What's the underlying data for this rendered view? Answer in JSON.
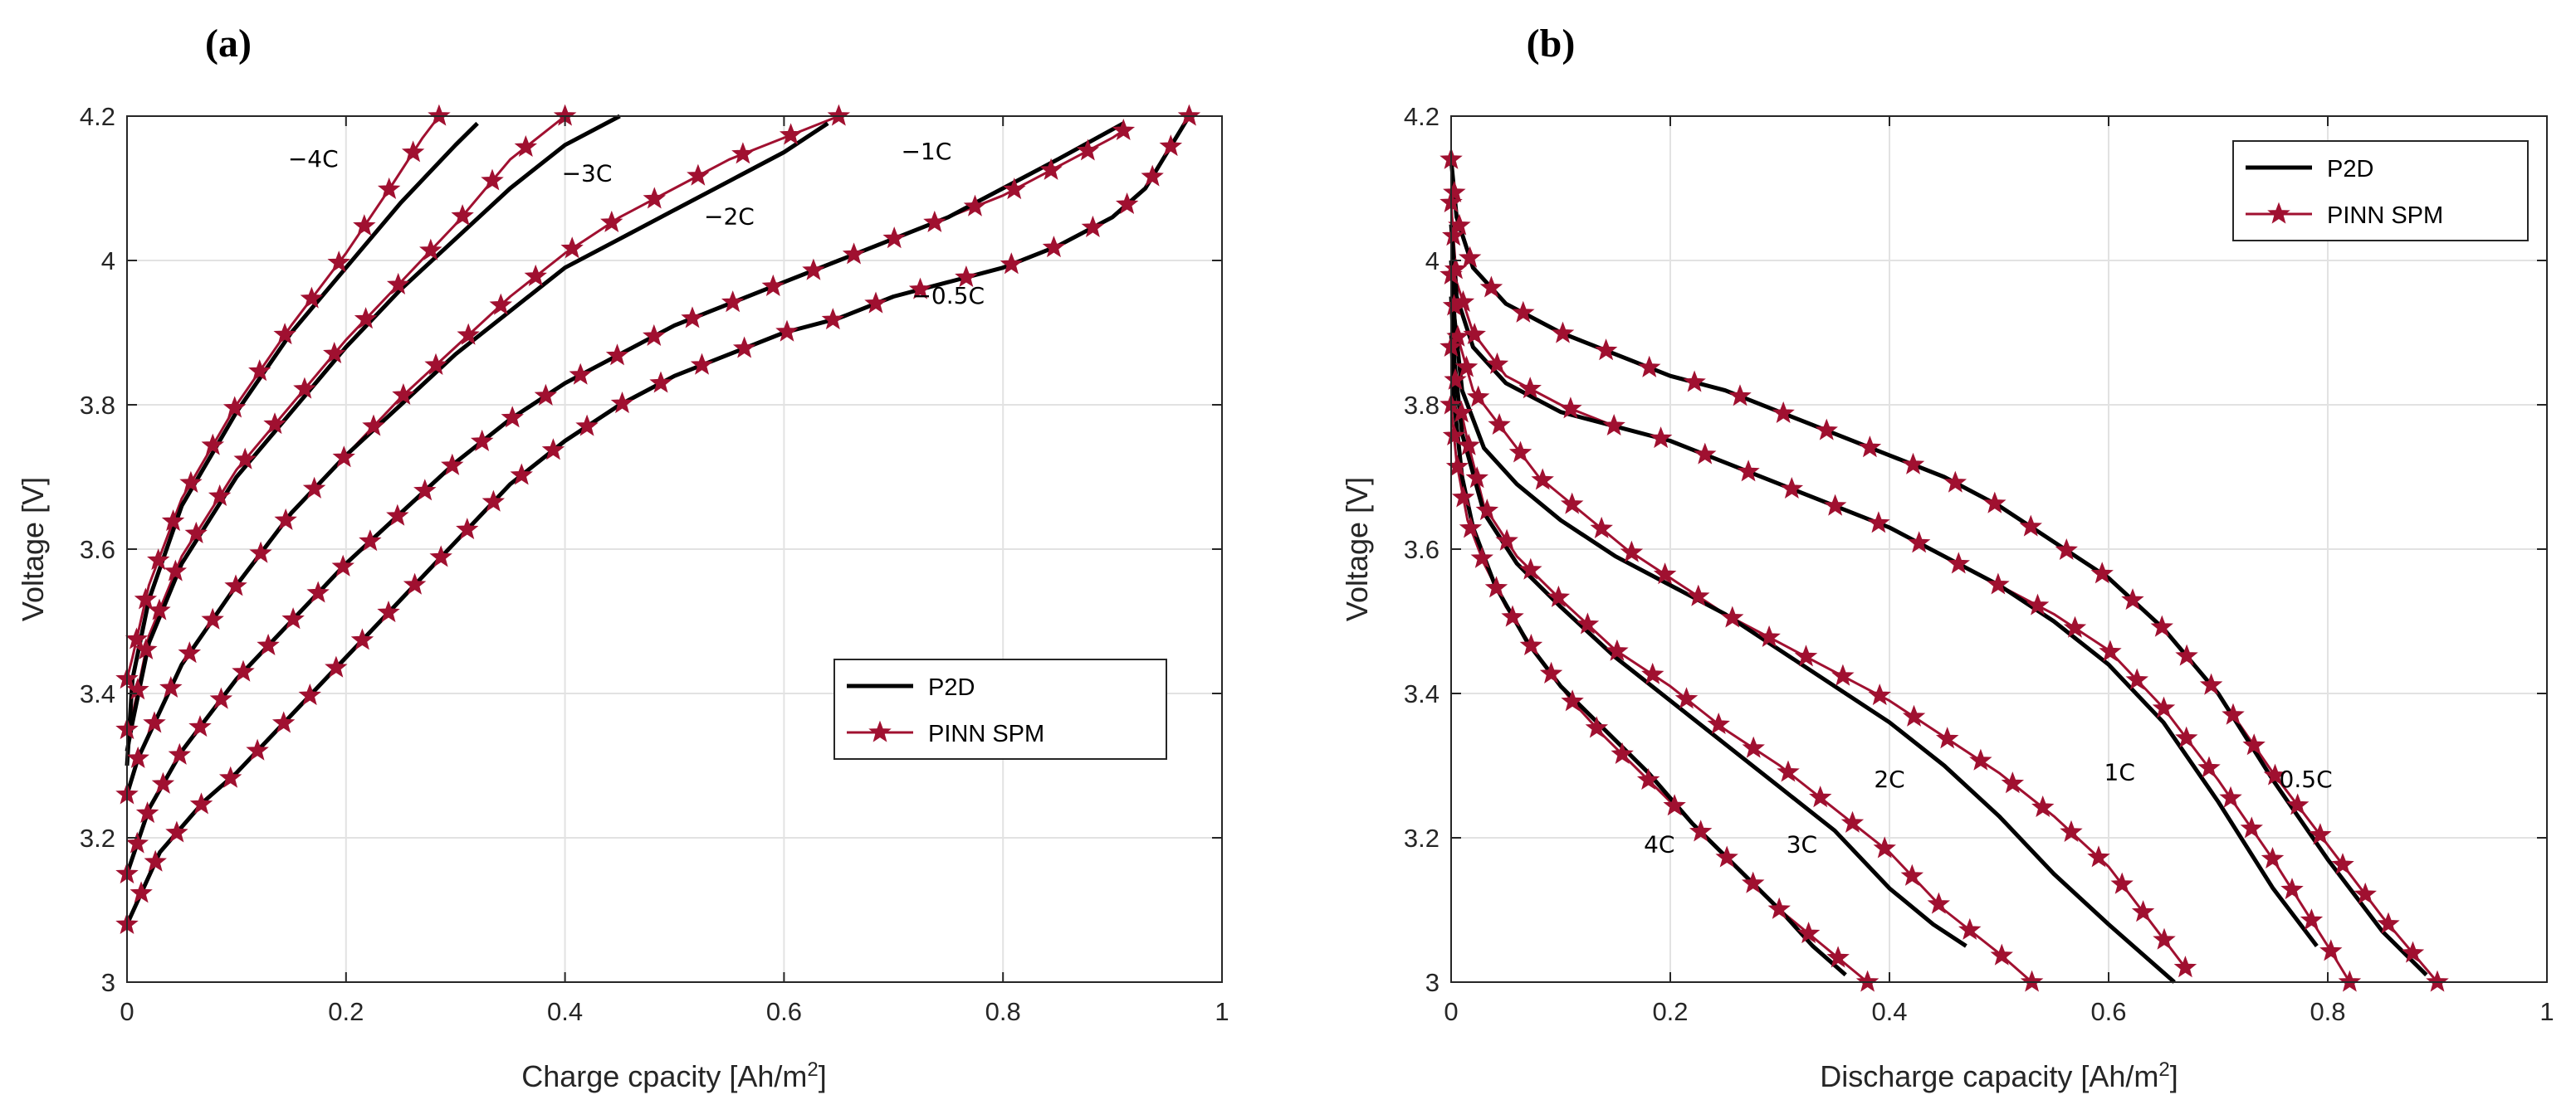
{
  "colors": {
    "p2d": "#000000",
    "pinn": "#a01030",
    "grid": "#e2e2e2",
    "axis": "#262626"
  },
  "chart_data": [
    {
      "type": "line",
      "panel_label": "(a)",
      "xlabel": "Charge cpacity [Ah/m",
      "xlabel_sup": "2",
      "xlabel_end": "]",
      "ylabel": "Voltage [V]",
      "xlim": [
        0,
        1
      ],
      "ylim": [
        3,
        4.2
      ],
      "xticks": [
        0,
        0.2,
        0.4,
        0.6,
        0.8,
        1
      ],
      "xtick_labels": [
        "0",
        "0.2",
        "0.4",
        "0.6",
        "0.8",
        "1"
      ],
      "yticks": [
        3,
        3.2,
        3.4,
        3.6,
        3.8,
        4,
        4.2
      ],
      "ytick_labels": [
        "3",
        "3.2",
        "3.4",
        "3.6",
        "3.8",
        "4",
        "4.2"
      ],
      "grid": true,
      "legend": {
        "position": "lower-right",
        "entries": [
          "P2D",
          "PINN SPM"
        ]
      },
      "series": [
        {
          "name": "P2D",
          "rate": "−4C",
          "x": [
            0,
            0.005,
            0.02,
            0.05,
            0.1,
            0.15,
            0.2,
            0.25,
            0.3,
            0.32
          ],
          "y": [
            3.3,
            3.42,
            3.53,
            3.66,
            3.79,
            3.9,
            3.99,
            4.08,
            4.16,
            4.19
          ]
        },
        {
          "name": "PINN SPM",
          "rate": "−4C",
          "x": [
            0,
            0.005,
            0.02,
            0.05,
            0.1,
            0.15,
            0.2,
            0.24,
            0.27,
            0.285
          ],
          "y": [
            3.42,
            3.45,
            3.55,
            3.67,
            3.8,
            3.91,
            4.01,
            4.1,
            4.17,
            4.2
          ]
        },
        {
          "name": "P2D",
          "rate": "−3C",
          "x": [
            0,
            0.005,
            0.02,
            0.05,
            0.1,
            0.15,
            0.2,
            0.25,
            0.3,
            0.35,
            0.4,
            0.45
          ],
          "y": [
            3.32,
            3.36,
            3.47,
            3.58,
            3.7,
            3.79,
            3.88,
            3.96,
            4.03,
            4.1,
            4.16,
            4.2
          ]
        },
        {
          "name": "PINN SPM",
          "rate": "−3C",
          "x": [
            0,
            0.005,
            0.02,
            0.05,
            0.1,
            0.15,
            0.2,
            0.25,
            0.3,
            0.35,
            0.4
          ],
          "y": [
            3.35,
            3.37,
            3.48,
            3.59,
            3.71,
            3.8,
            3.89,
            3.97,
            4.05,
            4.14,
            4.2
          ]
        },
        {
          "name": "P2D",
          "rate": "−2C",
          "x": [
            0,
            0.01,
            0.05,
            0.1,
            0.15,
            0.2,
            0.25,
            0.3,
            0.35,
            0.4,
            0.45,
            0.5,
            0.55,
            0.6,
            0.64
          ],
          "y": [
            3.26,
            3.31,
            3.44,
            3.55,
            3.65,
            3.73,
            3.8,
            3.87,
            3.93,
            3.99,
            4.03,
            4.07,
            4.11,
            4.15,
            4.19
          ]
        },
        {
          "name": "PINN SPM",
          "rate": "−2C",
          "x": [
            0,
            0.01,
            0.05,
            0.1,
            0.15,
            0.2,
            0.25,
            0.3,
            0.35,
            0.4,
            0.45,
            0.5,
            0.55,
            0.6,
            0.65
          ],
          "y": [
            3.26,
            3.31,
            3.44,
            3.55,
            3.65,
            3.73,
            3.81,
            3.88,
            3.95,
            4.01,
            4.06,
            4.1,
            4.14,
            4.17,
            4.2
          ]
        },
        {
          "name": "P2D",
          "rate": "−1C",
          "x": [
            0,
            0.02,
            0.05,
            0.1,
            0.15,
            0.2,
            0.25,
            0.3,
            0.35,
            0.4,
            0.45,
            0.5,
            0.55,
            0.6,
            0.65,
            0.7,
            0.75,
            0.8,
            0.85,
            0.91
          ],
          "y": [
            3.15,
            3.24,
            3.32,
            3.42,
            3.5,
            3.58,
            3.65,
            3.72,
            3.78,
            3.83,
            3.87,
            3.91,
            3.94,
            3.97,
            4.0,
            4.03,
            4.06,
            4.1,
            4.14,
            4.19
          ]
        },
        {
          "name": "PINN SPM",
          "rate": "−1C",
          "x": [
            0,
            0.02,
            0.05,
            0.1,
            0.15,
            0.2,
            0.25,
            0.3,
            0.35,
            0.4,
            0.45,
            0.5,
            0.55,
            0.6,
            0.65,
            0.7,
            0.75,
            0.8,
            0.85,
            0.9,
            0.91
          ],
          "y": [
            3.15,
            3.24,
            3.32,
            3.42,
            3.5,
            3.58,
            3.65,
            3.72,
            3.78,
            3.83,
            3.87,
            3.91,
            3.94,
            3.97,
            4.0,
            4.03,
            4.06,
            4.09,
            4.13,
            4.17,
            4.18
          ]
        },
        {
          "name": "P2D",
          "rate": "−0.5C",
          "x": [
            0,
            0.03,
            0.07,
            0.1,
            0.15,
            0.2,
            0.25,
            0.3,
            0.35,
            0.4,
            0.45,
            0.5,
            0.55,
            0.6,
            0.65,
            0.7,
            0.75,
            0.8,
            0.85,
            0.9,
            0.93,
            0.97
          ],
          "y": [
            3.08,
            3.18,
            3.25,
            3.29,
            3.37,
            3.45,
            3.53,
            3.61,
            3.69,
            3.75,
            3.8,
            3.84,
            3.87,
            3.9,
            3.92,
            3.95,
            3.97,
            3.99,
            4.02,
            4.06,
            4.1,
            4.2
          ]
        },
        {
          "name": "PINN SPM",
          "rate": "−0.5C",
          "x": [
            0,
            0.03,
            0.07,
            0.1,
            0.15,
            0.2,
            0.25,
            0.3,
            0.35,
            0.4,
            0.45,
            0.5,
            0.55,
            0.6,
            0.65,
            0.7,
            0.75,
            0.8,
            0.85,
            0.9,
            0.93,
            0.97
          ],
          "y": [
            3.08,
            3.18,
            3.25,
            3.29,
            3.37,
            3.45,
            3.53,
            3.61,
            3.69,
            3.75,
            3.8,
            3.84,
            3.87,
            3.9,
            3.92,
            3.95,
            3.97,
            3.99,
            4.02,
            4.06,
            4.1,
            4.2
          ]
        }
      ],
      "annotations": [
        {
          "text": "−4C",
          "x": 0.17,
          "y": 4.13
        },
        {
          "text": "−3C",
          "x": 0.42,
          "y": 4.11
        },
        {
          "text": "−2C",
          "x": 0.55,
          "y": 4.05
        },
        {
          "text": "−1C",
          "x": 0.73,
          "y": 4.14
        },
        {
          "text": "−0.5C",
          "x": 0.75,
          "y": 3.94
        }
      ]
    },
    {
      "type": "line",
      "panel_label": "(b)",
      "xlabel": "Discharge capacity [Ah/m",
      "xlabel_sup": "2",
      "xlabel_end": "]",
      "ylabel": "Voltage [V]",
      "xlim": [
        0,
        1
      ],
      "ylim": [
        3,
        4.2
      ],
      "xticks": [
        0,
        0.2,
        0.4,
        0.6,
        0.8,
        1
      ],
      "xtick_labels": [
        "0",
        "0.2",
        "0.4",
        "0.6",
        "0.8",
        "1"
      ],
      "yticks": [
        3,
        3.2,
        3.4,
        3.6,
        3.8,
        4,
        4.2
      ],
      "ytick_labels": [
        "3",
        "3.2",
        "3.4",
        "3.6",
        "3.8",
        "4",
        "4.2"
      ],
      "grid": true,
      "legend": {
        "position": "top-right",
        "entries": [
          "P2D",
          "PINN SPM"
        ]
      },
      "series": [
        {
          "name": "P2D",
          "rate": "4C",
          "x": [
            0,
            0.003,
            0.01,
            0.02,
            0.04,
            0.07,
            0.1,
            0.14,
            0.18,
            0.22,
            0.26,
            0.3,
            0.33,
            0.36
          ],
          "y": [
            3.9,
            3.8,
            3.7,
            3.63,
            3.55,
            3.47,
            3.41,
            3.35,
            3.29,
            3.22,
            3.16,
            3.1,
            3.05,
            3.01
          ]
        },
        {
          "name": "PINN SPM",
          "rate": "4C",
          "x": [
            0,
            0.005,
            0.015,
            0.03,
            0.05,
            0.08,
            0.11,
            0.14,
            0.18,
            0.22,
            0.26,
            0.3,
            0.34,
            0.38
          ],
          "y": [
            3.8,
            3.72,
            3.64,
            3.58,
            3.52,
            3.45,
            3.39,
            3.34,
            3.28,
            3.22,
            3.16,
            3.1,
            3.05,
            3.0
          ]
        },
        {
          "name": "P2D",
          "rate": "3C",
          "x": [
            0,
            0.003,
            0.01,
            0.03,
            0.06,
            0.1,
            0.15,
            0.2,
            0.25,
            0.3,
            0.35,
            0.4,
            0.44,
            0.47
          ],
          "y": [
            3.95,
            3.86,
            3.76,
            3.65,
            3.58,
            3.52,
            3.45,
            3.39,
            3.33,
            3.27,
            3.21,
            3.13,
            3.08,
            3.05
          ]
        },
        {
          "name": "PINN SPM",
          "rate": "3C",
          "x": [
            0,
            0.005,
            0.015,
            0.03,
            0.06,
            0.1,
            0.15,
            0.2,
            0.25,
            0.3,
            0.35,
            0.4,
            0.45,
            0.5,
            0.53
          ],
          "y": [
            3.88,
            3.82,
            3.75,
            3.66,
            3.59,
            3.53,
            3.46,
            3.41,
            3.35,
            3.3,
            3.24,
            3.18,
            3.1,
            3.04,
            3.0
          ]
        },
        {
          "name": "P2D",
          "rate": "2C",
          "x": [
            0,
            0.003,
            0.01,
            0.03,
            0.06,
            0.1,
            0.15,
            0.2,
            0.25,
            0.3,
            0.35,
            0.4,
            0.45,
            0.5,
            0.55,
            0.6,
            0.66
          ],
          "y": [
            4.0,
            3.92,
            3.82,
            3.74,
            3.69,
            3.64,
            3.59,
            3.55,
            3.51,
            3.46,
            3.41,
            3.36,
            3.3,
            3.23,
            3.15,
            3.08,
            3.0
          ]
        },
        {
          "name": "PINN SPM",
          "rate": "2C",
          "x": [
            0,
            0.005,
            0.02,
            0.05,
            0.08,
            0.12,
            0.16,
            0.2,
            0.25,
            0.3,
            0.35,
            0.4,
            0.45,
            0.5,
            0.55,
            0.6,
            0.65,
            0.67
          ],
          "y": [
            3.98,
            3.9,
            3.82,
            3.76,
            3.7,
            3.65,
            3.6,
            3.56,
            3.51,
            3.47,
            3.43,
            3.39,
            3.34,
            3.29,
            3.23,
            3.16,
            3.06,
            3.02
          ]
        },
        {
          "name": "P2D",
          "rate": "1C",
          "x": [
            0,
            0.005,
            0.02,
            0.05,
            0.1,
            0.15,
            0.2,
            0.25,
            0.3,
            0.35,
            0.4,
            0.45,
            0.5,
            0.55,
            0.6,
            0.65,
            0.7,
            0.75,
            0.79
          ],
          "y": [
            4.05,
            3.95,
            3.88,
            3.83,
            3.79,
            3.77,
            3.75,
            3.72,
            3.69,
            3.66,
            3.63,
            3.59,
            3.55,
            3.5,
            3.44,
            3.36,
            3.25,
            3.13,
            3.05
          ]
        },
        {
          "name": "PINN SPM",
          "rate": "1C",
          "x": [
            0,
            0.005,
            0.02,
            0.05,
            0.1,
            0.15,
            0.2,
            0.25,
            0.3,
            0.35,
            0.4,
            0.45,
            0.5,
            0.55,
            0.6,
            0.65,
            0.7,
            0.75,
            0.8,
            0.82
          ],
          "y": [
            4.08,
            3.97,
            3.9,
            3.84,
            3.8,
            3.77,
            3.75,
            3.72,
            3.69,
            3.66,
            3.63,
            3.59,
            3.55,
            3.51,
            3.46,
            3.38,
            3.28,
            3.17,
            3.05,
            3.0
          ]
        },
        {
          "name": "P2D",
          "rate": "0.5C",
          "x": [
            0,
            0.005,
            0.02,
            0.05,
            0.1,
            0.15,
            0.2,
            0.25,
            0.3,
            0.35,
            0.4,
            0.45,
            0.5,
            0.55,
            0.6,
            0.65,
            0.7,
            0.75,
            0.8,
            0.85,
            0.89
          ],
          "y": [
            4.14,
            4.06,
            3.99,
            3.94,
            3.9,
            3.87,
            3.84,
            3.82,
            3.79,
            3.76,
            3.73,
            3.7,
            3.66,
            3.61,
            3.56,
            3.49,
            3.4,
            3.28,
            3.17,
            3.07,
            3.01
          ]
        },
        {
          "name": "PINN SPM",
          "rate": "0.5C",
          "x": [
            0,
            0.005,
            0.02,
            0.05,
            0.1,
            0.15,
            0.2,
            0.25,
            0.3,
            0.35,
            0.4,
            0.45,
            0.5,
            0.55,
            0.6,
            0.65,
            0.7,
            0.75,
            0.8,
            0.85,
            0.9
          ],
          "y": [
            4.14,
            4.06,
            3.99,
            3.94,
            3.9,
            3.87,
            3.84,
            3.82,
            3.79,
            3.76,
            3.73,
            3.7,
            3.66,
            3.61,
            3.56,
            3.49,
            3.4,
            3.29,
            3.19,
            3.09,
            3.0
          ]
        }
      ],
      "annotations": [
        {
          "text": "4C",
          "x": 0.19,
          "y": 3.18
        },
        {
          "text": "3C",
          "x": 0.32,
          "y": 3.18
        },
        {
          "text": "2C",
          "x": 0.4,
          "y": 3.27
        },
        {
          "text": "1C",
          "x": 0.61,
          "y": 3.28
        },
        {
          "text": "0.5C",
          "x": 0.78,
          "y": 3.27
        }
      ]
    }
  ]
}
